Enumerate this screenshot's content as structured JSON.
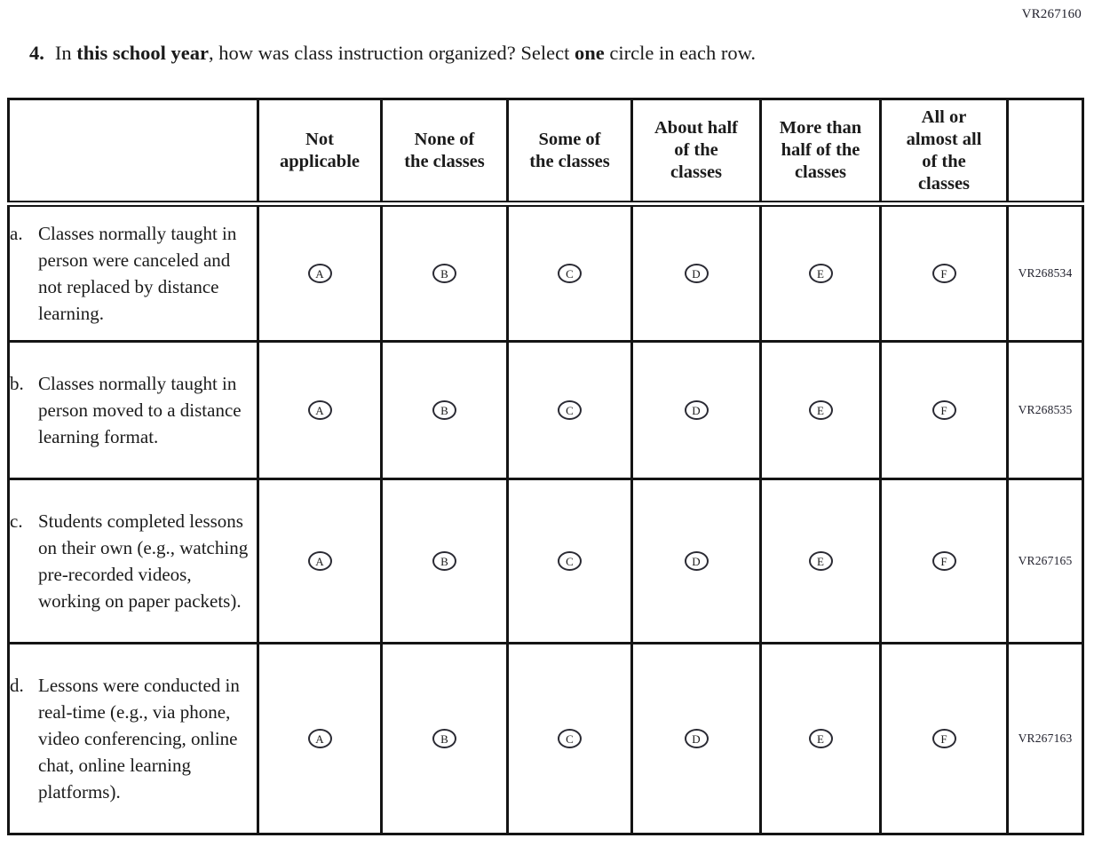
{
  "page": {
    "form_code": "VR267160"
  },
  "question": {
    "number": "4.",
    "part1": "In ",
    "bold1": "this school year",
    "part2": ", how was class instruction organized? Select ",
    "bold2": "one",
    "part3": " circle in each row."
  },
  "table": {
    "column_headers": [
      "Not\napplicable",
      "None of\nthe classes",
      "Some of\nthe classes",
      "About half\nof the\nclasses",
      "More than\nhalf of the\nclasses",
      "All or\nalmost all\nof the\nclasses"
    ],
    "option_letters": [
      "A",
      "B",
      "C",
      "D",
      "E",
      "F"
    ],
    "rows": [
      {
        "letter": "a.",
        "text": "Classes normally taught in person were canceled and not replaced by distance learning.",
        "code": "VR268534",
        "height_class": "r-a"
      },
      {
        "letter": "b.",
        "text": "Classes normally taught in person moved to a distance learning format.",
        "code": "VR268535",
        "height_class": "r-b"
      },
      {
        "letter": "c.",
        "text": "Students completed lessons on their own (e.g., watching pre-recorded videos, working on paper packets).",
        "code": "VR267165",
        "height_class": "r-c"
      },
      {
        "letter": "d.",
        "text": "Lessons were conducted in real-time (e.g., via phone, video conferencing, online chat, online learning platforms).",
        "code": "VR267163",
        "height_class": "r-d"
      }
    ]
  },
  "colors": {
    "text": "#1b1b1b",
    "border": "#141414",
    "background": "#ffffff"
  }
}
